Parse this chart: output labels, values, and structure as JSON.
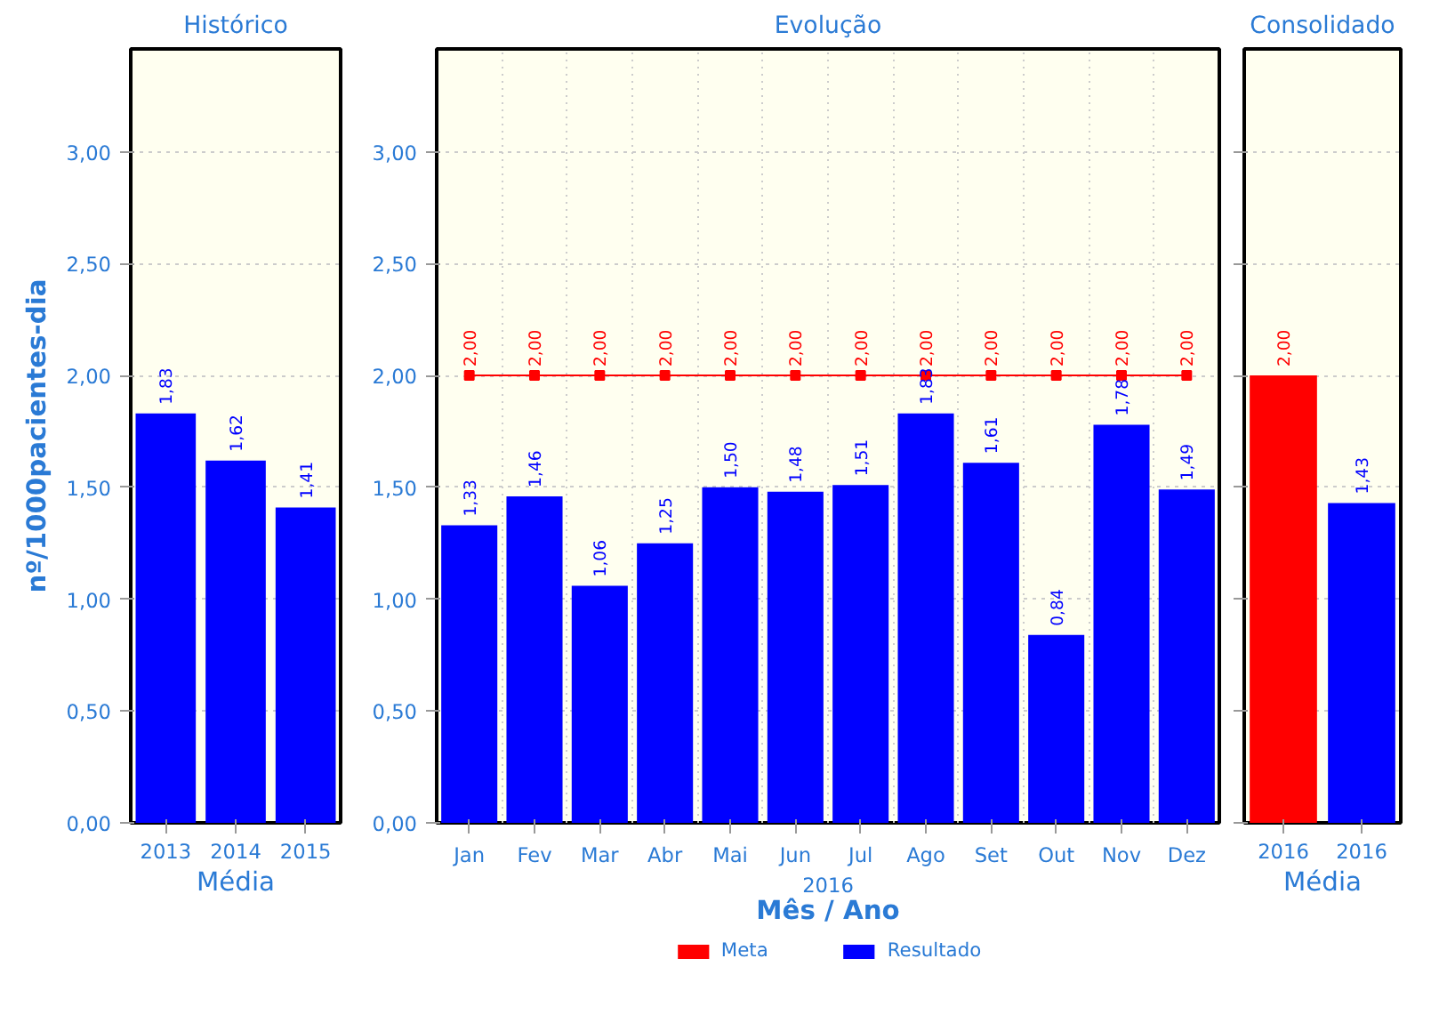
{
  "chart_data": [
    {
      "type": "bar",
      "title": "Histórico",
      "xlabel": "Média",
      "ylabel": "nº/1000pacientes-dia",
      "categories": [
        "2013",
        "2014",
        "2015"
      ],
      "series": [
        {
          "color": "#0000ff",
          "values": [
            1.83,
            1.62,
            1.41
          ],
          "value_labels": [
            "1,83",
            "1,62",
            "1,41"
          ]
        }
      ],
      "ylim": [
        0,
        3.46
      ],
      "yticks": [
        {
          "value": 0,
          "label": "0,00"
        },
        {
          "value": 0.5,
          "label": "0,50"
        },
        {
          "value": 1,
          "label": "1,00"
        },
        {
          "value": 1.5,
          "label": "1,50"
        },
        {
          "value": 2,
          "label": "2,00"
        },
        {
          "value": 2.5,
          "label": "2,50"
        },
        {
          "value": 3,
          "label": "3,00"
        }
      ],
      "grid": "y"
    },
    {
      "type": "bar",
      "title": "Evolução",
      "xlabel": "Mês / Ano",
      "annotations": [
        "2016"
      ],
      "categories": [
        "Jan",
        "Fev",
        "Mar",
        "Abr",
        "Mai",
        "Jun",
        "Jul",
        "Ago",
        "Set",
        "Out",
        "Nov",
        "Dez"
      ],
      "series": [
        {
          "name": "Meta",
          "type": "line",
          "marker": "square",
          "color": "#ff0000",
          "values": [
            2.0,
            2.0,
            2.0,
            2.0,
            2.0,
            2.0,
            2.0,
            2.0,
            2.0,
            2.0,
            2.0,
            2.0
          ],
          "value_labels": [
            "2,00",
            "2,00",
            "2,00",
            "2,00",
            "2,00",
            "2,00",
            "2,00",
            "2,00",
            "2,00",
            "2,00",
            "2,00",
            "2,00"
          ]
        },
        {
          "name": "Resultado",
          "color": "#0000ff",
          "values": [
            1.33,
            1.46,
            1.06,
            1.25,
            1.5,
            1.48,
            1.51,
            1.83,
            1.61,
            0.84,
            1.78,
            1.49
          ],
          "value_labels": [
            "1,33",
            "1,46",
            "1,06",
            "1,25",
            "1,50",
            "1,48",
            "1,51",
            "1,83",
            "1,61",
            "0,84",
            "1,78",
            "1,49"
          ]
        }
      ],
      "ylim": [
        0,
        3.46
      ],
      "yticks": [
        {
          "value": 0,
          "label": "0,00"
        },
        {
          "value": 0.5,
          "label": "0,50"
        },
        {
          "value": 1,
          "label": "1,00"
        },
        {
          "value": 1.5,
          "label": "1,50"
        },
        {
          "value": 2,
          "label": "2,00"
        },
        {
          "value": 2.5,
          "label": "2,50"
        },
        {
          "value": 3,
          "label": "3,00"
        }
      ],
      "grid": true,
      "legend": "bottom"
    },
    {
      "type": "bar",
      "title": "Consolidado",
      "xlabel": "Média",
      "categories": [
        "2016",
        "2016"
      ],
      "values": [
        2.0,
        1.43
      ],
      "value_labels": [
        "2,00",
        "1,43"
      ],
      "colors": [
        "#ff0000",
        "#0000ff"
      ],
      "ylim": [
        0,
        3.46
      ],
      "yticks": [
        {
          "value": 0,
          "label": null
        },
        {
          "value": 0.5,
          "label": null
        },
        {
          "value": 1,
          "label": null
        },
        {
          "value": 1.5,
          "label": null
        },
        {
          "value": 2,
          "label": null
        },
        {
          "value": 2.5,
          "label": null
        },
        {
          "value": 3,
          "label": null
        }
      ],
      "grid": "y"
    }
  ]
}
